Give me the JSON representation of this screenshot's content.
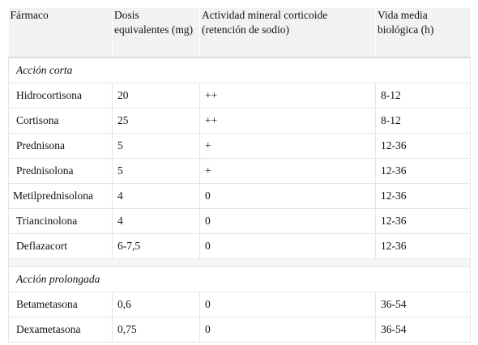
{
  "table": {
    "headers": [
      "Fármaco",
      "Dosis equivalentes (mg)",
      "Actividad mineral corticoide (retención de sodio)",
      "Vida media biológica (h)"
    ],
    "sections": [
      {
        "label": "Acción corta",
        "rows": [
          [
            "Hidrocortisona",
            "20",
            "++",
            "8-12"
          ],
          [
            "Cortisona",
            "25",
            "++",
            "8-12"
          ],
          [
            "Prednisona",
            "5",
            "+",
            "12-36"
          ],
          [
            "Prednisolona",
            "5",
            "+",
            "12-36"
          ],
          [
            "Metilprednisolona",
            "4",
            "0",
            "12-36"
          ],
          [
            "Triancinolona",
            "4",
            "0",
            "12-36"
          ],
          [
            "Deflazacort",
            "6-7,5",
            "0",
            "12-36"
          ]
        ]
      },
      {
        "label": "Acción prolongada",
        "rows": [
          [
            "Betametasona",
            "0,6",
            "0",
            "36-54"
          ],
          [
            "Dexametasona",
            "0,75",
            "0",
            "36-54"
          ]
        ]
      }
    ]
  },
  "colors": {
    "header_bg": "#f2f2f2",
    "grid_line": "#e6e6e6",
    "text": "#111111"
  }
}
